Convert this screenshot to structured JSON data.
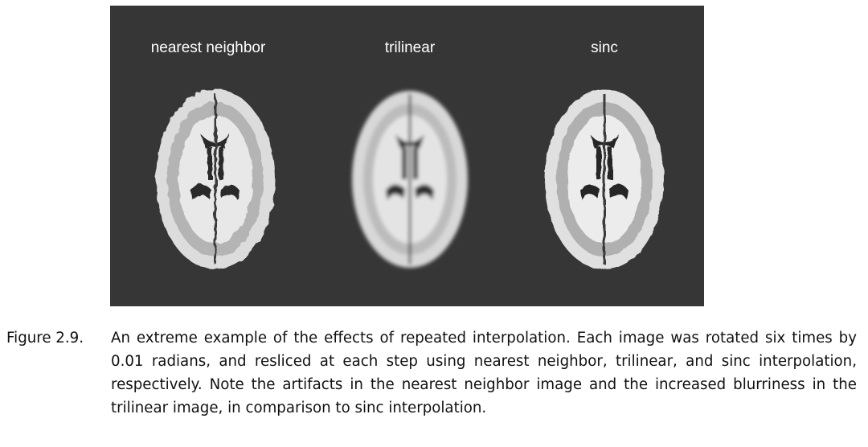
{
  "figure": {
    "panels": [
      {
        "label": "nearest neighbor",
        "method": "nearest"
      },
      {
        "label": "trilinear",
        "method": "trilinear"
      },
      {
        "label": "sinc",
        "method": "sinc"
      }
    ],
    "colors": {
      "background": "#363636",
      "label": "#ffffff",
      "brain_matter": "#e2e2e2"
    }
  },
  "caption": {
    "number": "Figure 2.9.",
    "text": "An extreme example of the effects of repeated interpolation. Each image was rotated six times by 0.01 radians, and resliced at each step using nearest neighbor, trilinear, and sinc interpolation, respectively. Note the artifacts in the nearest neighbor image and the increased blurriness in the trilinear image, in comparison to sinc interpolation."
  }
}
